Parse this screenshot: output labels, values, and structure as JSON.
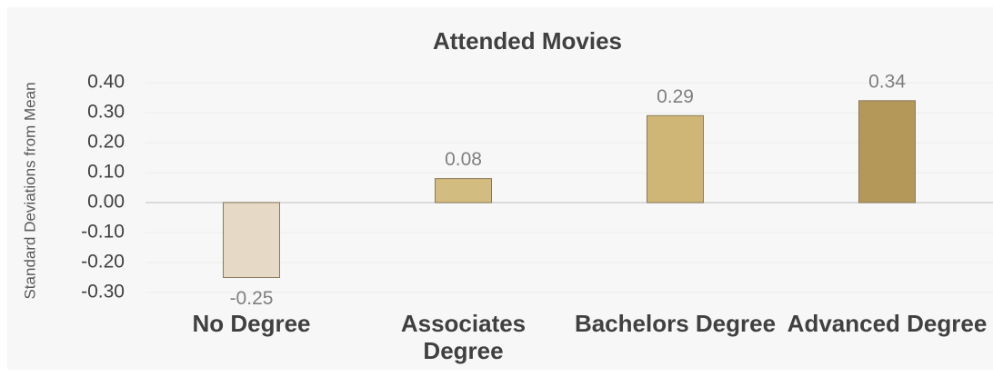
{
  "chart_data": {
    "type": "bar",
    "title": "Attended Movies",
    "ylabel": "Standard Deviations from Mean",
    "categories": [
      "No Degree",
      "Associates Degree",
      "Bachelors Degree",
      "Advanced Degree"
    ],
    "values": [
      -0.25,
      0.08,
      0.29,
      0.34
    ],
    "colors": [
      "#e6dac6",
      "#d3bc80",
      "#cfb677",
      "#b49859"
    ],
    "ylim": [
      -0.3,
      0.4
    ],
    "yticks": [
      {
        "value": -0.3,
        "label": "-0.30"
      },
      {
        "value": -0.2,
        "label": "-0.20"
      },
      {
        "value": -0.1,
        "label": "-0.10"
      },
      {
        "value": 0,
        "label": "0.00"
      },
      {
        "value": 0.1,
        "label": "0.10"
      },
      {
        "value": 0.2,
        "label": "0.20"
      },
      {
        "value": 0.3,
        "label": "0.30"
      },
      {
        "value": 0.4,
        "label": "0.40"
      }
    ],
    "grid": true
  }
}
